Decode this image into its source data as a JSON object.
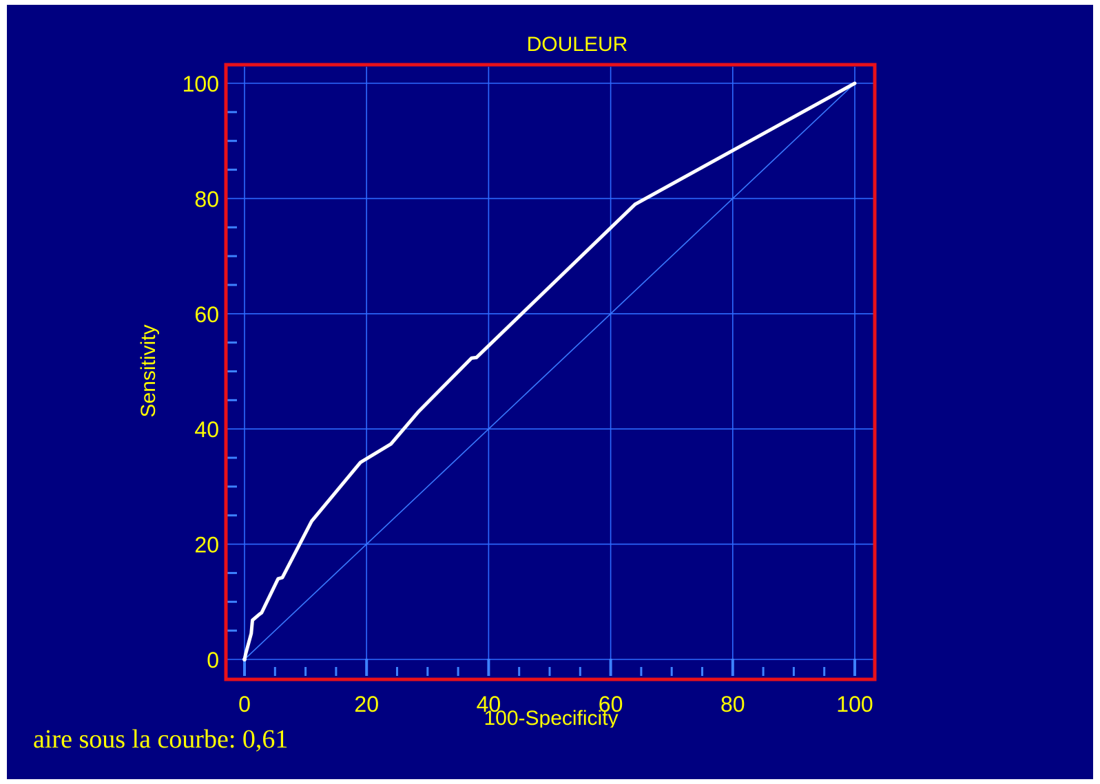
{
  "slide": {
    "background": "#000080",
    "note": "aire sous la courbe: 0,61"
  },
  "chart_data": {
    "type": "line",
    "title": "DOULEUR",
    "xlabel": "100-Specificity",
    "ylabel": "Sensitivity",
    "xlim": [
      0,
      100
    ],
    "ylim": [
      0,
      100
    ],
    "x_ticks": [
      "0",
      "20",
      "40",
      "60",
      "80",
      "100"
    ],
    "y_ticks": [
      "0",
      "20",
      "40",
      "60",
      "80",
      "100"
    ],
    "grid": true,
    "series": [
      {
        "color": "#ffffff",
        "x": [
          0,
          0.2,
          1.1,
          1.3,
          2.4,
          2.8,
          5.5,
          6.2,
          11,
          19,
          24,
          28.5,
          37.2,
          38,
          64
        ],
        "y": [
          0,
          1,
          4.5,
          6.8,
          7.8,
          8.1,
          14,
          14.2,
          24,
          34.2,
          37.4,
          43,
          52.3,
          52.4,
          79
        ]
      },
      {
        "color": "#3a7aff",
        "x": [
          0,
          100
        ],
        "y": [
          0,
          100
        ]
      }
    ],
    "curve_endpoint": [
      100,
      100
    ],
    "colors": {
      "text": "#ffff00",
      "frame": "#e8111a",
      "grid": "#2e6bff",
      "curve": "#ffffff",
      "diagonal": "#3a7aff"
    }
  }
}
